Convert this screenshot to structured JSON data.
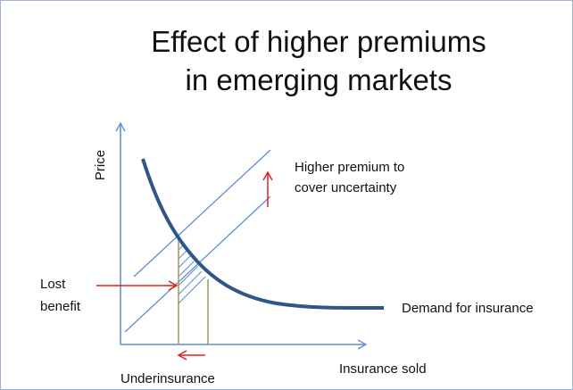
{
  "title": {
    "line1": "Effect of higher premiums",
    "line2": "in emerging markets"
  },
  "axes": {
    "y_label": "Price",
    "x_label": "Insurance sold"
  },
  "annotations": {
    "higher_premium": {
      "line1": "Higher premium to",
      "line2": "cover uncertainty"
    },
    "lost_benefit": {
      "line1": "Lost",
      "line2": "benefit"
    },
    "demand": "Demand for insurance",
    "underinsurance": "Underinsurance"
  }
}
